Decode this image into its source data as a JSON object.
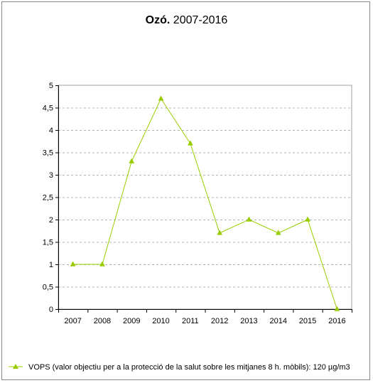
{
  "chart_data": {
    "type": "line",
    "title_bold": "Ozó.",
    "title_rest": " 2007-2016",
    "categories": [
      "2007",
      "2008",
      "2009",
      "2010",
      "2011",
      "2012",
      "2013",
      "2014",
      "2015",
      "2016"
    ],
    "series": [
      {
        "name": "VOPS (valor objectiu per a la protecció de la salut sobre les mitjanes 8 h. mòbils): 120 µg/m3",
        "values": [
          1,
          1,
          3.3,
          4.7,
          3.7,
          1.7,
          2,
          1.7,
          2,
          0
        ],
        "color": "#99cc00"
      }
    ],
    "ylim": [
      0,
      5
    ],
    "yticks": [
      0,
      0.5,
      1,
      1.5,
      2,
      2.5,
      3,
      3.5,
      4,
      4.5,
      5
    ],
    "ytick_labels": [
      "0",
      "0,5",
      "1",
      "1,5",
      "2",
      "2,5",
      "3",
      "3,5",
      "4",
      "4,5",
      "5"
    ],
    "grid": true,
    "legend_position": "bottom-left",
    "colors": {
      "grid": "#b0b0b0",
      "axis": "#000000"
    }
  }
}
